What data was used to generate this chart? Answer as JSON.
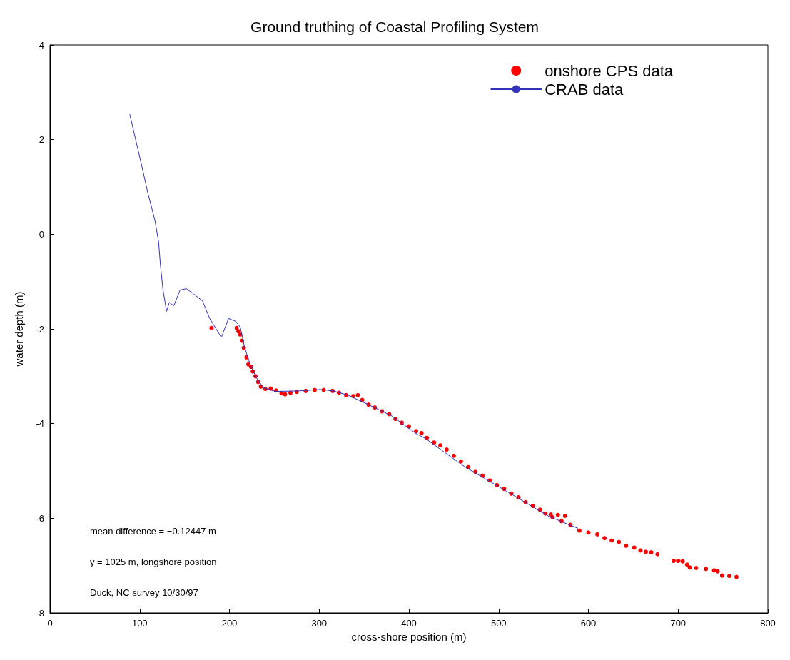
{
  "chart_data": {
    "type": "line",
    "title": "Ground truthing of Coastal Profiling System",
    "xlabel": "cross-shore position (m)",
    "ylabel": "water depth (m)",
    "xlim": [
      0,
      800
    ],
    "xticks": [
      0,
      100,
      200,
      300,
      400,
      500,
      600,
      700,
      800
    ],
    "ylim": [
      -8,
      4
    ],
    "yticks": [
      -8,
      -6,
      -4,
      -2,
      0,
      2,
      4
    ],
    "grid": false,
    "legend": "top right",
    "annotations": [
      "mean difference = −0.12447 m",
      "y = 1025 m, longshore position",
      "Duck, NC survey 10/30/97"
    ],
    "series": [
      {
        "name": "onshore CPS data",
        "type": "scatter",
        "color": "#ff0000",
        "marker": "circle",
        "x": [
          180,
          208,
          210,
          212,
          214,
          216,
          219,
          221,
          224,
          226,
          229,
          232,
          235,
          240,
          246,
          252,
          258,
          262,
          268,
          275,
          285,
          295,
          305,
          315,
          322,
          330,
          338,
          343,
          348,
          355,
          362,
          370,
          378,
          385,
          392,
          400,
          408,
          414,
          420,
          428,
          435,
          442,
          450,
          458,
          466,
          474,
          482,
          490,
          498,
          506,
          514,
          522,
          530,
          538,
          546,
          552,
          558,
          566,
          574,
          560,
          570,
          580,
          590,
          600,
          610,
          618,
          626,
          634,
          642,
          651,
          658,
          664,
          670,
          677,
          695,
          700,
          705,
          710,
          713,
          720,
          731,
          740,
          744,
          749,
          757,
          765
        ],
        "values": [
          -1.98,
          -1.98,
          -2.05,
          -2.12,
          -2.25,
          -2.4,
          -2.6,
          -2.75,
          -2.8,
          -2.9,
          -3.0,
          -3.12,
          -3.22,
          -3.27,
          -3.26,
          -3.3,
          -3.36,
          -3.38,
          -3.35,
          -3.33,
          -3.31,
          -3.29,
          -3.29,
          -3.31,
          -3.35,
          -3.4,
          -3.42,
          -3.4,
          -3.5,
          -3.6,
          -3.66,
          -3.74,
          -3.8,
          -3.9,
          -3.98,
          -4.06,
          -4.16,
          -4.2,
          -4.3,
          -4.4,
          -4.46,
          -4.55,
          -4.68,
          -4.8,
          -4.92,
          -5.02,
          -5.1,
          -5.2,
          -5.3,
          -5.38,
          -5.48,
          -5.56,
          -5.66,
          -5.74,
          -5.82,
          -5.9,
          -5.92,
          -5.93,
          -5.95,
          -5.98,
          -6.06,
          -6.14,
          -6.26,
          -6.3,
          -6.34,
          -6.42,
          -6.47,
          -6.5,
          -6.58,
          -6.62,
          -6.68,
          -6.71,
          -6.72,
          -6.76,
          -6.9,
          -6.9,
          -6.91,
          -6.98,
          -7.04,
          -7.05,
          -7.07,
          -7.1,
          -7.12,
          -7.21,
          -7.22,
          -7.24
        ]
      },
      {
        "name": "CRAB data",
        "type": "line",
        "color": "#3333bb",
        "marker": "none",
        "line_style": "solid",
        "x": [
          89,
          94,
          102,
          109,
          117,
          121,
          123,
          126,
          130,
          133,
          138,
          145,
          152,
          160,
          170,
          178,
          191,
          199,
          207,
          212,
          217,
          223,
          230,
          238,
          251,
          277,
          301,
          316,
          332,
          355,
          381,
          408,
          418,
          462,
          516,
          556,
          588
        ],
        "values": [
          2.53,
          2.12,
          1.47,
          0.88,
          0.29,
          -0.15,
          -0.63,
          -1.18,
          -1.63,
          -1.44,
          -1.51,
          -1.18,
          -1.15,
          -1.26,
          -1.41,
          -1.78,
          -2.18,
          -1.78,
          -1.84,
          -1.96,
          -2.4,
          -2.74,
          -3.03,
          -3.24,
          -3.32,
          -3.31,
          -3.28,
          -3.31,
          -3.4,
          -3.6,
          -3.84,
          -4.21,
          -4.31,
          -4.91,
          -5.51,
          -5.96,
          -6.21
        ]
      }
    ]
  }
}
